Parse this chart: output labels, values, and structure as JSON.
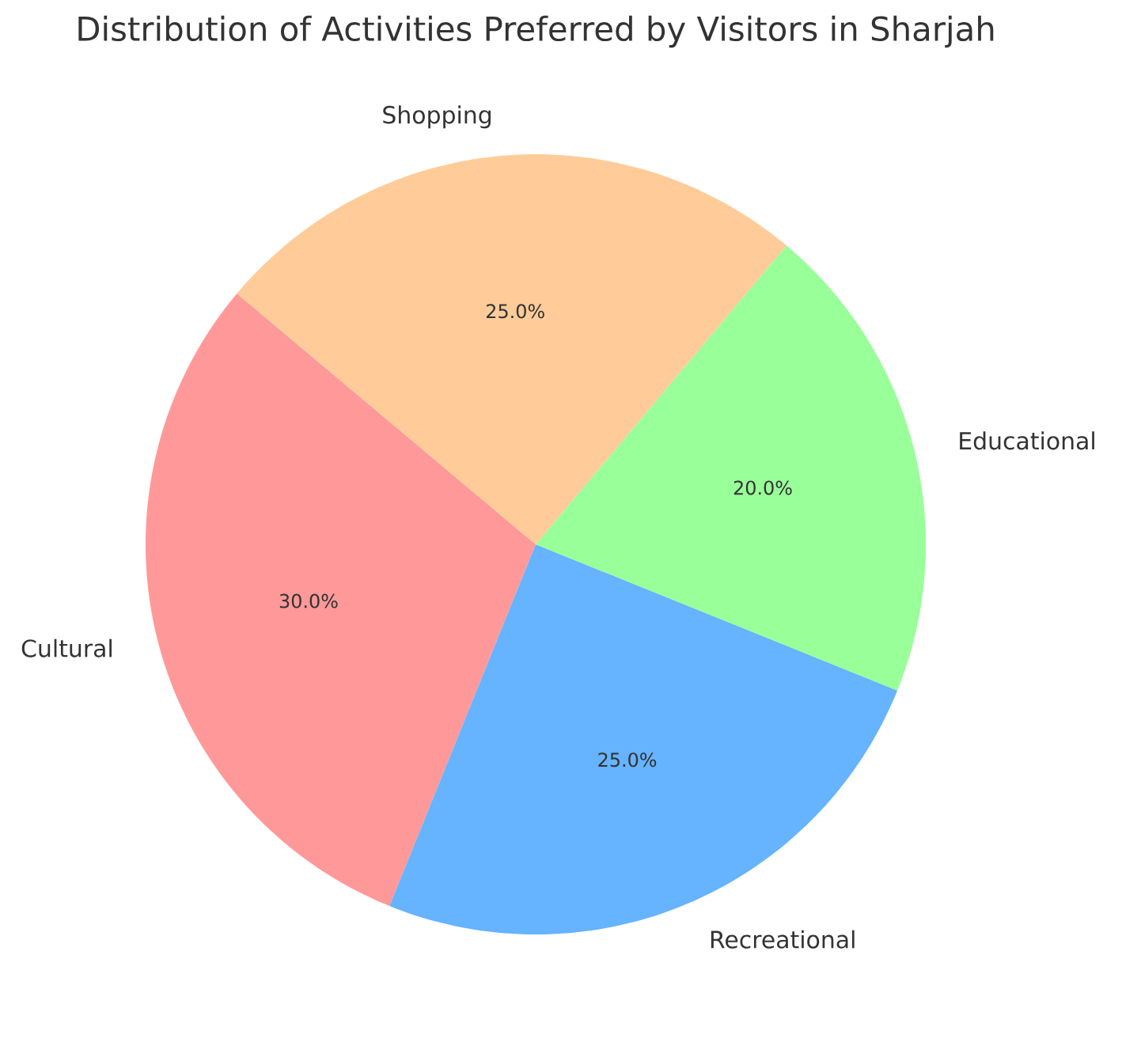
{
  "chart_data": {
    "type": "pie",
    "title": "Distribution of Activities Preferred by Visitors in Sharjah",
    "categories": [
      "Cultural",
      "Recreational",
      "Educational",
      "Shopping"
    ],
    "values": [
      30,
      25,
      20,
      25
    ],
    "colors": [
      "#ff9999",
      "#66b3ff",
      "#99ff99",
      "#ffcc99"
    ],
    "value_labels": [
      "30.0%",
      "25.0%",
      "20.0%",
      "25.0%"
    ]
  }
}
